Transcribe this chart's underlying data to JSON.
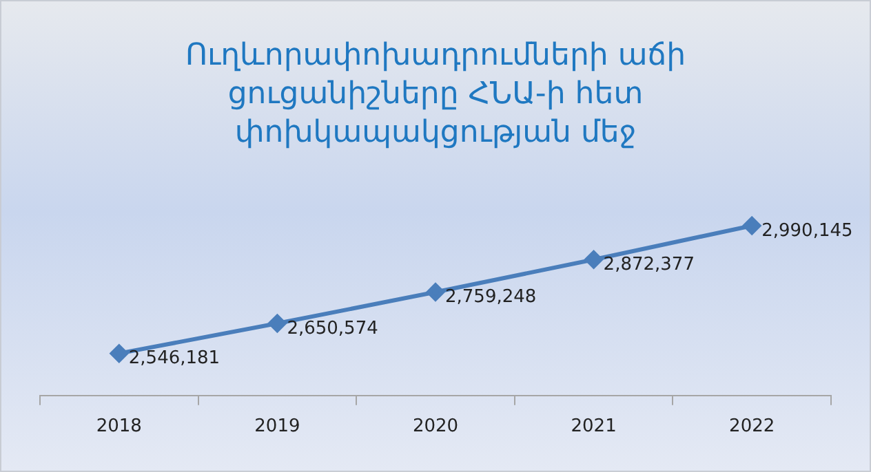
{
  "chart_data": {
    "type": "line",
    "title": "Ուղևորափոխադրումների աճի ցուցանիշները ՀՆԱ-ի հետ փոխկապակցության մեջ",
    "categories": [
      "2018",
      "2019",
      "2020",
      "2021",
      "2022"
    ],
    "series": [
      {
        "color": "#4a7ebb",
        "values": [
          2546181,
          2650574,
          2759248,
          2872377,
          2990145
        ],
        "value_labels": [
          "2,546,181",
          "2,650,574",
          "2,759,248",
          "2,872,377",
          "2,990,145"
        ]
      }
    ],
    "tick_labels": "x",
    "grid": false,
    "legend": false,
    "marker": "diamond",
    "line_style": "solid"
  }
}
